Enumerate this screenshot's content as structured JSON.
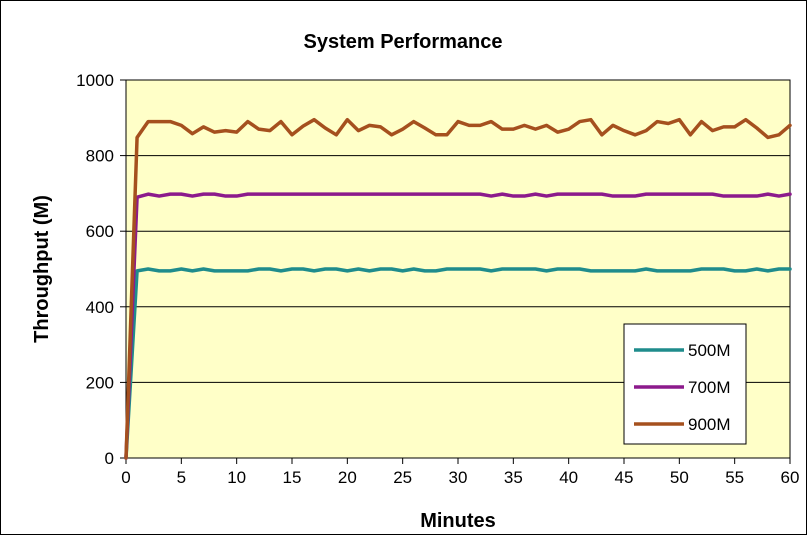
{
  "chart_data": {
    "type": "line",
    "title": "System Performance",
    "xlabel": "Minutes",
    "ylabel": "Throughput (M)",
    "xlim": [
      0,
      60
    ],
    "ylim": [
      0,
      1000
    ],
    "xticks": [
      0,
      5,
      10,
      15,
      20,
      25,
      30,
      35,
      40,
      45,
      50,
      55,
      60
    ],
    "yticks": [
      0,
      200,
      400,
      600,
      800,
      1000
    ],
    "grid": "horizontal",
    "legend_position": "bottom-right",
    "plot_background": "#FFFFC8",
    "x": [
      0,
      1,
      2,
      3,
      4,
      5,
      6,
      7,
      8,
      9,
      10,
      11,
      12,
      13,
      14,
      15,
      16,
      17,
      18,
      19,
      20,
      21,
      22,
      23,
      24,
      25,
      26,
      27,
      28,
      29,
      30,
      31,
      32,
      33,
      34,
      35,
      36,
      37,
      38,
      39,
      40,
      41,
      42,
      43,
      44,
      45,
      46,
      47,
      48,
      49,
      50,
      51,
      52,
      53,
      54,
      55,
      56,
      57,
      58,
      59,
      60
    ],
    "series": [
      {
        "name": "500M",
        "color": "#1F8C8C",
        "values": [
          0,
          495,
          500,
          495,
          495,
          500,
          495,
          500,
          495,
          495,
          495,
          495,
          500,
          500,
          495,
          500,
          500,
          495,
          500,
          500,
          495,
          500,
          495,
          500,
          500,
          495,
          500,
          495,
          495,
          500,
          500,
          500,
          500,
          495,
          500,
          500,
          500,
          500,
          495,
          500,
          500,
          500,
          495,
          495,
          495,
          495,
          495,
          500,
          495,
          495,
          495,
          495,
          500,
          500,
          500,
          495,
          495,
          500,
          495,
          500,
          500
        ]
      },
      {
        "name": "700M",
        "color": "#8C1A8C",
        "values": [
          0,
          690,
          698,
          693,
          698,
          698,
          693,
          698,
          698,
          693,
          693,
          698,
          698,
          698,
          698,
          698,
          698,
          698,
          698,
          698,
          698,
          698,
          698,
          698,
          698,
          698,
          698,
          698,
          698,
          698,
          698,
          698,
          698,
          693,
          698,
          693,
          693,
          698,
          693,
          698,
          698,
          698,
          698,
          698,
          693,
          693,
          693,
          698,
          698,
          698,
          698,
          698,
          698,
          698,
          693,
          693,
          693,
          693,
          698,
          693,
          698
        ]
      },
      {
        "name": "900M",
        "color": "#A5501E",
        "values": [
          0,
          848,
          890,
          890,
          890,
          880,
          858,
          876,
          862,
          866,
          862,
          890,
          870,
          866,
          890,
          855,
          878,
          895,
          873,
          855,
          895,
          866,
          880,
          876,
          855,
          870,
          890,
          873,
          855,
          855,
          890,
          880,
          880,
          890,
          870,
          870,
          880,
          870,
          880,
          862,
          870,
          890,
          895,
          855,
          880,
          866,
          855,
          866,
          890,
          885,
          895,
          855,
          890,
          866,
          876,
          876,
          895,
          873,
          848,
          855,
          880
        ]
      }
    ]
  }
}
